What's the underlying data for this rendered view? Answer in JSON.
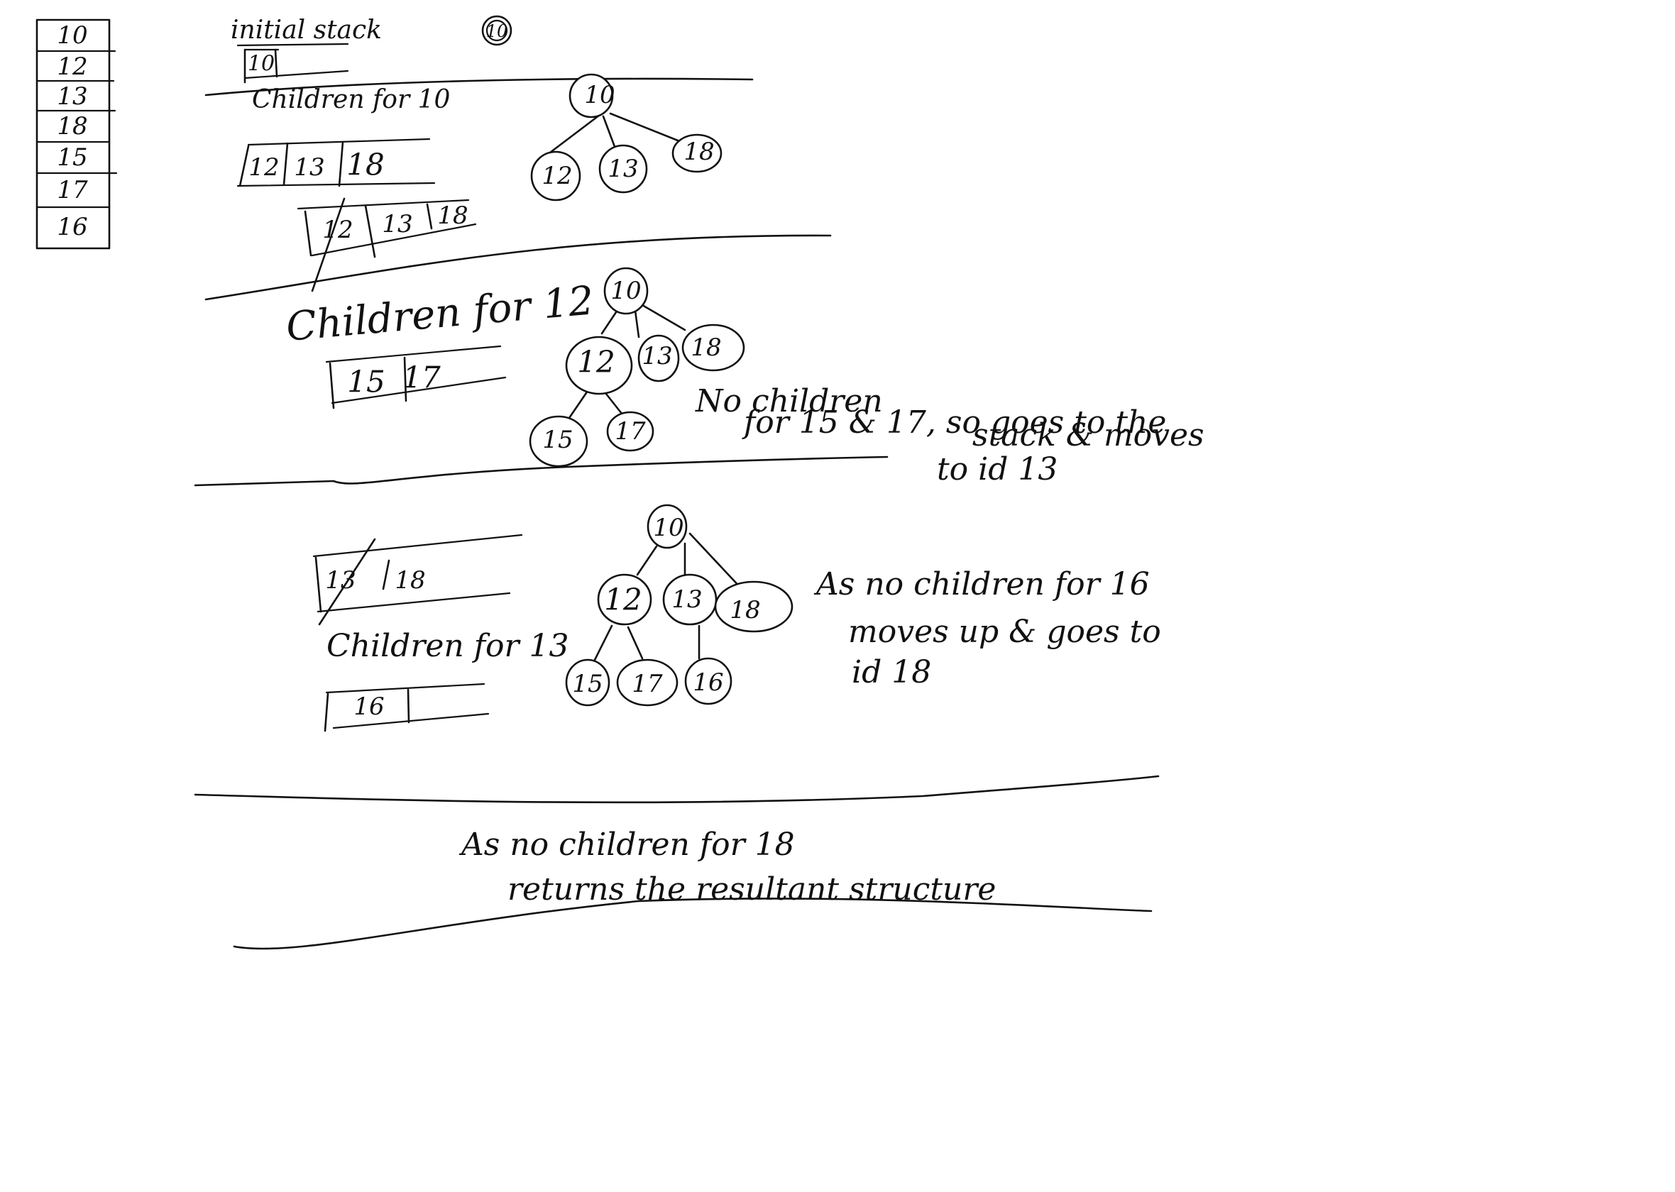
{
  "main_stack": {
    "cells": [
      "10",
      "12",
      "13",
      "18",
      "15",
      "17",
      "16"
    ]
  },
  "section1": {
    "title": "initial stack",
    "root_label": "10",
    "stack": [
      "10"
    ]
  },
  "section2": {
    "title": "Children for 10",
    "stack": [
      "12",
      "13",
      "18"
    ],
    "stack_popped": [
      "12",
      "13",
      "18"
    ],
    "tree": [
      "10",
      "12",
      "13",
      "18"
    ]
  },
  "section3": {
    "title": "Children for 12",
    "stack": [
      "15",
      "17"
    ],
    "tree": [
      "10",
      "12",
      "13",
      "18",
      "15",
      "17"
    ],
    "note": [
      "No children",
      "for 15 & 17, so goes to the",
      "stack & moves",
      "to id 13"
    ]
  },
  "section4": {
    "stack_popped": [
      "13",
      "18"
    ],
    "title": "Children for 13",
    "stack": [
      "16"
    ],
    "tree": [
      "10",
      "12",
      "13",
      "18",
      "15",
      "17",
      "16"
    ],
    "note": [
      "As no children for 16",
      "moves up & goes to",
      "id 18"
    ]
  },
  "section5": {
    "note": [
      "As no children for 18",
      "returns the resultant structure"
    ]
  }
}
